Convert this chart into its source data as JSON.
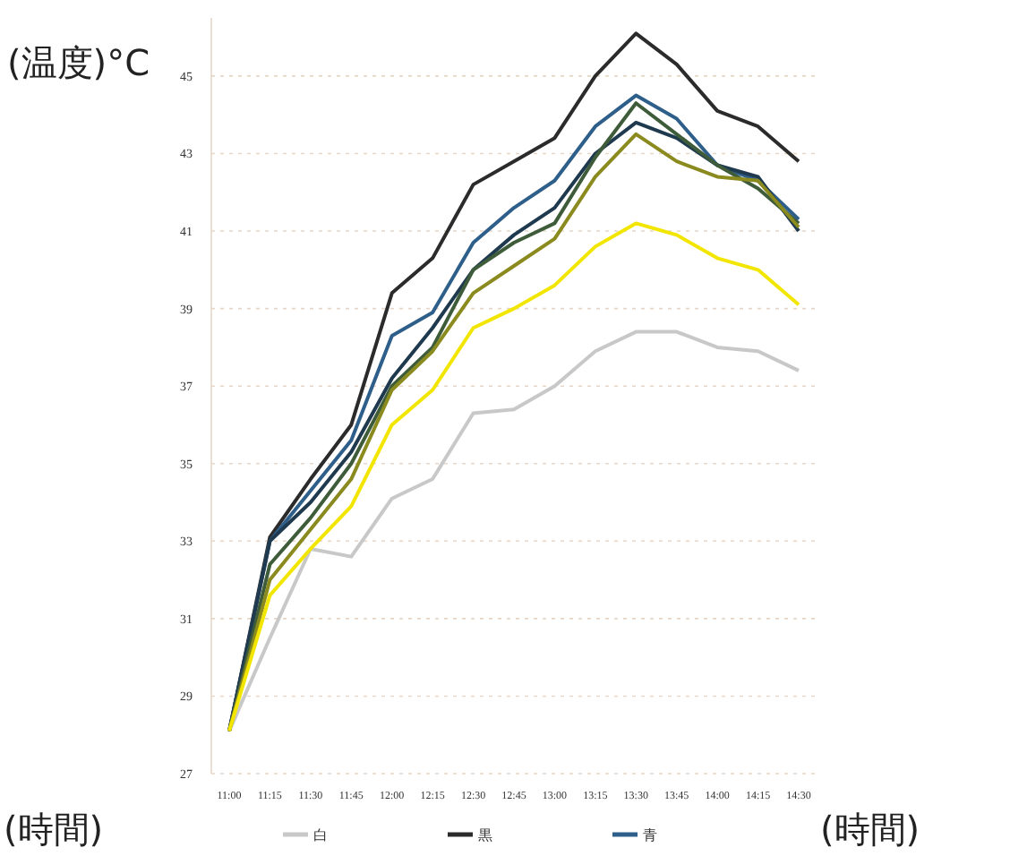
{
  "chart_data": {
    "type": "line",
    "ylabel": "(温度)°C",
    "xlabel": "(時間)",
    "annotations": [
      "(時間)"
    ],
    "categories": [
      "11:00",
      "11:15",
      "11:30",
      "11:45",
      "12:00",
      "12:15",
      "12:30",
      "12:45",
      "13:00",
      "13:15",
      "13:30",
      "13:45",
      "14:00",
      "14:15",
      "14:30"
    ],
    "series": [
      {
        "name": "白",
        "color": "#c8c8c8",
        "values": [
          28.1,
          30.5,
          32.8,
          32.6,
          34.1,
          34.6,
          36.3,
          36.4,
          37.0,
          37.9,
          38.4,
          38.4,
          38.0,
          37.9,
          37.4
        ]
      },
      {
        "name": "黒",
        "color": "#2b2b2b",
        "values": [
          28.1,
          33.1,
          34.6,
          36.0,
          39.4,
          40.3,
          42.2,
          42.8,
          43.4,
          45.0,
          46.1,
          45.3,
          44.1,
          43.7,
          42.8
        ]
      },
      {
        "name": "青",
        "color": "#2e5f8a",
        "values": [
          28.1,
          33.0,
          34.3,
          35.6,
          38.3,
          38.9,
          40.7,
          41.6,
          42.3,
          43.7,
          44.5,
          43.9,
          42.7,
          42.3,
          41.3
        ]
      },
      {
        "color": "#1f3a4f",
        "values": [
          28.1,
          33.0,
          34.0,
          35.3,
          37.2,
          38.5,
          40.0,
          40.9,
          41.6,
          43.0,
          43.8,
          43.4,
          42.7,
          42.4,
          41.0
        ]
      },
      {
        "color": "#3e5c3a",
        "values": [
          28.1,
          32.4,
          33.6,
          35.0,
          37.0,
          38.0,
          40.0,
          40.7,
          41.2,
          42.9,
          44.3,
          43.5,
          42.7,
          42.1,
          41.2
        ]
      },
      {
        "color": "#8a8a1f",
        "values": [
          28.1,
          32.0,
          33.3,
          34.6,
          36.9,
          37.9,
          39.4,
          40.1,
          40.8,
          42.4,
          43.5,
          42.8,
          42.4,
          42.3,
          41.1
        ]
      },
      {
        "color": "#f2e600",
        "values": [
          28.1,
          31.6,
          32.8,
          33.9,
          36.0,
          36.9,
          38.5,
          39.0,
          39.6,
          40.6,
          41.2,
          40.9,
          40.3,
          40.0,
          39.1
        ]
      }
    ],
    "ylim": [
      27,
      46.5
    ],
    "yticks": [
      27,
      29,
      31,
      33,
      35,
      37,
      39,
      41,
      43,
      45
    ],
    "grid": "y",
    "legend": "bottom",
    "marker": "none",
    "line_style": "solid"
  }
}
